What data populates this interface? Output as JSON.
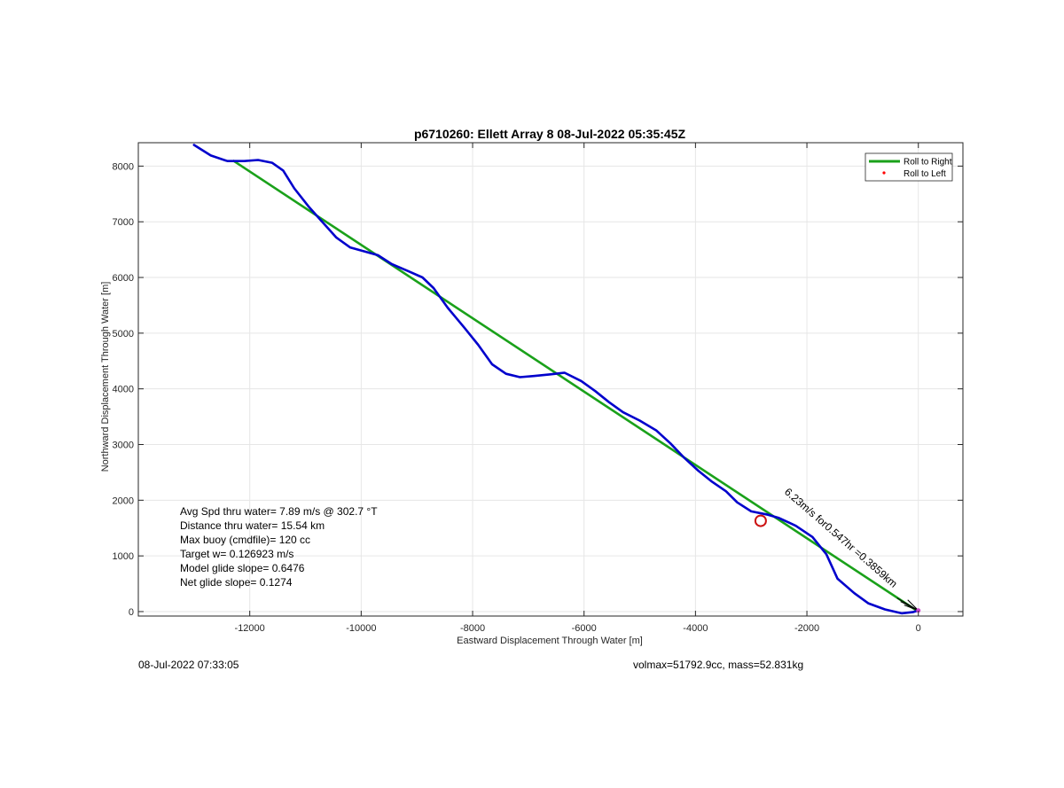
{
  "chart_data": {
    "type": "line",
    "title": "p6710260: Ellett Array 8 08-Jul-2022 05:35:45Z",
    "xlabel": "Eastward Displacement Through Water [m]",
    "ylabel": "Northward Displacement Through Water [m]",
    "xlim": [
      -14000,
      800
    ],
    "ylim": [
      -80,
      8420
    ],
    "xticks": [
      -12000,
      -10000,
      -8000,
      -6000,
      -4000,
      -2000,
      0
    ],
    "yticks": [
      0,
      1000,
      2000,
      3000,
      4000,
      5000,
      6000,
      7000,
      8000
    ],
    "grid": true,
    "legend_position": "top-right",
    "legend": [
      {
        "label": "Roll to Right",
        "color": "#1aa11a",
        "style": "line"
      },
      {
        "label": "Roll to Left",
        "color": "#ff0000",
        "style": "dot"
      }
    ],
    "series": [
      {
        "color": "#0000cc",
        "points": [
          [
            -13000,
            8380
          ],
          [
            -12700,
            8190
          ],
          [
            -12400,
            8090
          ],
          [
            -12100,
            8090
          ],
          [
            -11850,
            8110
          ],
          [
            -11600,
            8060
          ],
          [
            -11400,
            7920
          ],
          [
            -11200,
            7600
          ],
          [
            -10950,
            7280
          ],
          [
            -10700,
            7000
          ],
          [
            -10450,
            6720
          ],
          [
            -10200,
            6540
          ],
          [
            -9950,
            6470
          ],
          [
            -9700,
            6400
          ],
          [
            -9450,
            6240
          ],
          [
            -9150,
            6110
          ],
          [
            -8900,
            6000
          ],
          [
            -8700,
            5810
          ],
          [
            -8450,
            5460
          ],
          [
            -8150,
            5100
          ],
          [
            -7900,
            4790
          ],
          [
            -7650,
            4440
          ],
          [
            -7400,
            4270
          ],
          [
            -7150,
            4210
          ],
          [
            -6900,
            4230
          ],
          [
            -6600,
            4260
          ],
          [
            -6350,
            4290
          ],
          [
            -6050,
            4140
          ],
          [
            -5800,
            3960
          ],
          [
            -5550,
            3760
          ],
          [
            -5300,
            3580
          ],
          [
            -5000,
            3430
          ],
          [
            -4700,
            3250
          ],
          [
            -4450,
            3020
          ],
          [
            -4200,
            2760
          ],
          [
            -3950,
            2530
          ],
          [
            -3700,
            2330
          ],
          [
            -3450,
            2160
          ],
          [
            -3250,
            1960
          ],
          [
            -3000,
            1800
          ],
          [
            -2700,
            1740
          ],
          [
            -2500,
            1680
          ],
          [
            -2200,
            1540
          ],
          [
            -1900,
            1340
          ],
          [
            -1650,
            1030
          ],
          [
            -1450,
            590
          ],
          [
            -1150,
            330
          ],
          [
            -900,
            150
          ],
          [
            -600,
            40
          ],
          [
            -300,
            -30
          ],
          [
            -100,
            -10
          ],
          [
            0,
            20
          ]
        ]
      },
      {
        "color": "#1aa11a",
        "points": [
          [
            -12300,
            8100
          ],
          [
            0,
            0
          ]
        ]
      }
    ],
    "marker": {
      "x": -2830,
      "y": 1630,
      "color": "#cc1111"
    },
    "rotated_label": "6.23m/s for0.547hr =0.3859km",
    "stats": [
      "Avg Spd thru water=  7.89 m/s @ 302.7 °T",
      "Distance thru water= 15.54 km",
      "Max buoy (cmdfile)= 120 cc",
      "Target w= 0.126923 m/s",
      "Model glide slope= 0.6476",
      "Net glide slope= 0.1274"
    ]
  },
  "footer": {
    "timestamp": "08-Jul-2022 07:33:05",
    "volmax": "volmax=51792.9cc, mass=52.831kg"
  }
}
